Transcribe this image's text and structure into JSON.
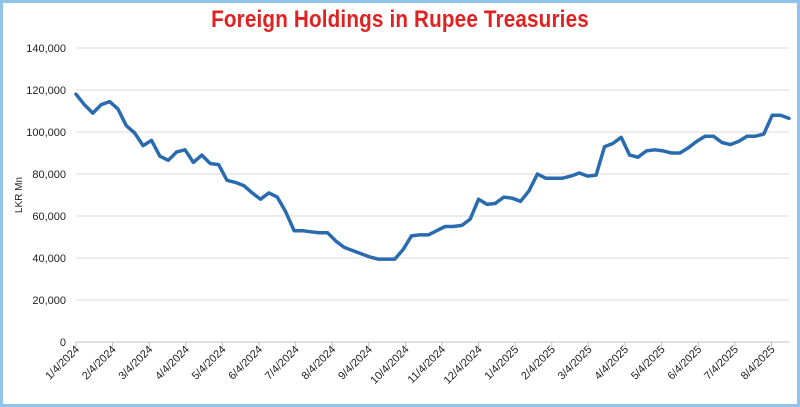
{
  "chart_data": {
    "type": "line",
    "title": "Foreign Holdings in Rupee Treasuries",
    "xlabel": "",
    "ylabel": "LKR Mn",
    "ylim": [
      0,
      140000
    ],
    "yticks": [
      "0",
      "20,000",
      "40,000",
      "60,000",
      "80,000",
      "100,000",
      "120,000",
      "140,000"
    ],
    "ytick_values": [
      0,
      20000,
      40000,
      60000,
      80000,
      100000,
      120000,
      140000
    ],
    "xticks": [
      "1/4/2024",
      "2/4/2024",
      "3/4/2024",
      "4/4/2024",
      "5/4/2024",
      "6/4/2024",
      "7/4/2024",
      "8/4/2024",
      "9/4/2024",
      "10/4/2024",
      "11/4/2024",
      "12/4/2024",
      "1/4/2025",
      "2/4/2025",
      "3/4/2025",
      "4/4/2025",
      "5/4/2025",
      "6/4/2025",
      "7/4/2025",
      "8/4/2025"
    ],
    "grid": true,
    "line_color": "#2a6bb0",
    "series": [
      {
        "name": "",
        "values": [
          118000,
          113000,
          109000,
          113000,
          114500,
          111000,
          103000,
          99500,
          93500,
          96000,
          88500,
          86500,
          90500,
          91500,
          85500,
          89000,
          85000,
          84500,
          77000,
          76000,
          74500,
          71000,
          68000,
          71000,
          69000,
          62000,
          53000,
          53000,
          52500,
          52000,
          52000,
          48000,
          45000,
          43500,
          42000,
          40500,
          39500,
          39500,
          39500,
          44000,
          50500,
          51000,
          51000,
          53000,
          55000,
          55000,
          55500,
          58500,
          68000,
          65500,
          66000,
          69000,
          68500,
          67000,
          72000,
          80000,
          78000,
          78000,
          78000,
          79000,
          80500,
          79000,
          79500,
          93000,
          94500,
          97500,
          89000,
          88000,
          91000,
          91500,
          91000,
          90000,
          90000,
          92500,
          95500,
          98000,
          98000,
          95000,
          94000,
          95500,
          98000,
          98000,
          99000,
          108000,
          108000,
          106500
        ]
      }
    ]
  }
}
